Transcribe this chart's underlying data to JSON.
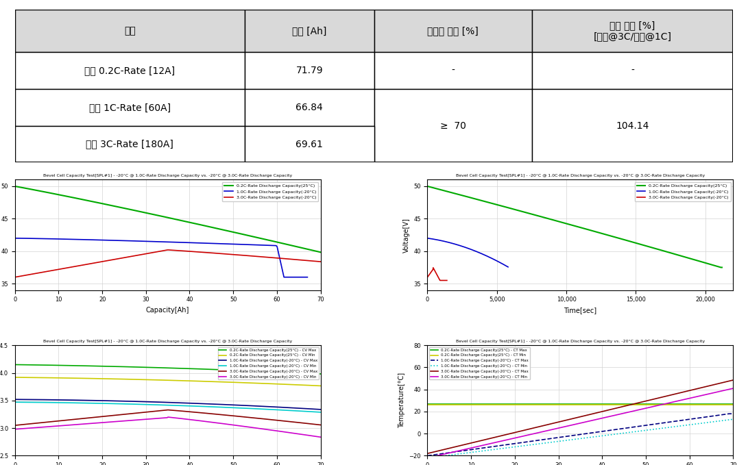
{
  "table": {
    "headers": [
      "항목",
      "용량 [Ah]",
      "정량적 목표 [%]",
      "방전 효율 [%]\n[저온@3C/저온@1C]"
    ],
    "rows": [
      [
        "상온 0.2C-Rate [12A]",
        "71.79",
        "-",
        "-"
      ],
      [
        "저온 1C-Rate [60A]",
        "66.84",
        "≥  70",
        "104.14"
      ],
      [
        "저온 3C-Rate [180A]",
        "69.61",
        "",
        ""
      ]
    ],
    "header_bg": "#d9d9d9",
    "font_size": 11
  },
  "chart_title": "Bevel Cell Capacity Test[SPL#1] - -20°C @ 1.0C-Rate Discharge Capacity vs. -20°C @ 3.0C-Rate Discharge Capacity",
  "colors": {
    "green": "#00aa00",
    "blue": "#0000cc",
    "red": "#cc0000",
    "yellow": "#cccc00",
    "dark_blue": "#000080",
    "cyan": "#00cccc",
    "dark_red": "#880000",
    "magenta": "#cc00cc"
  }
}
